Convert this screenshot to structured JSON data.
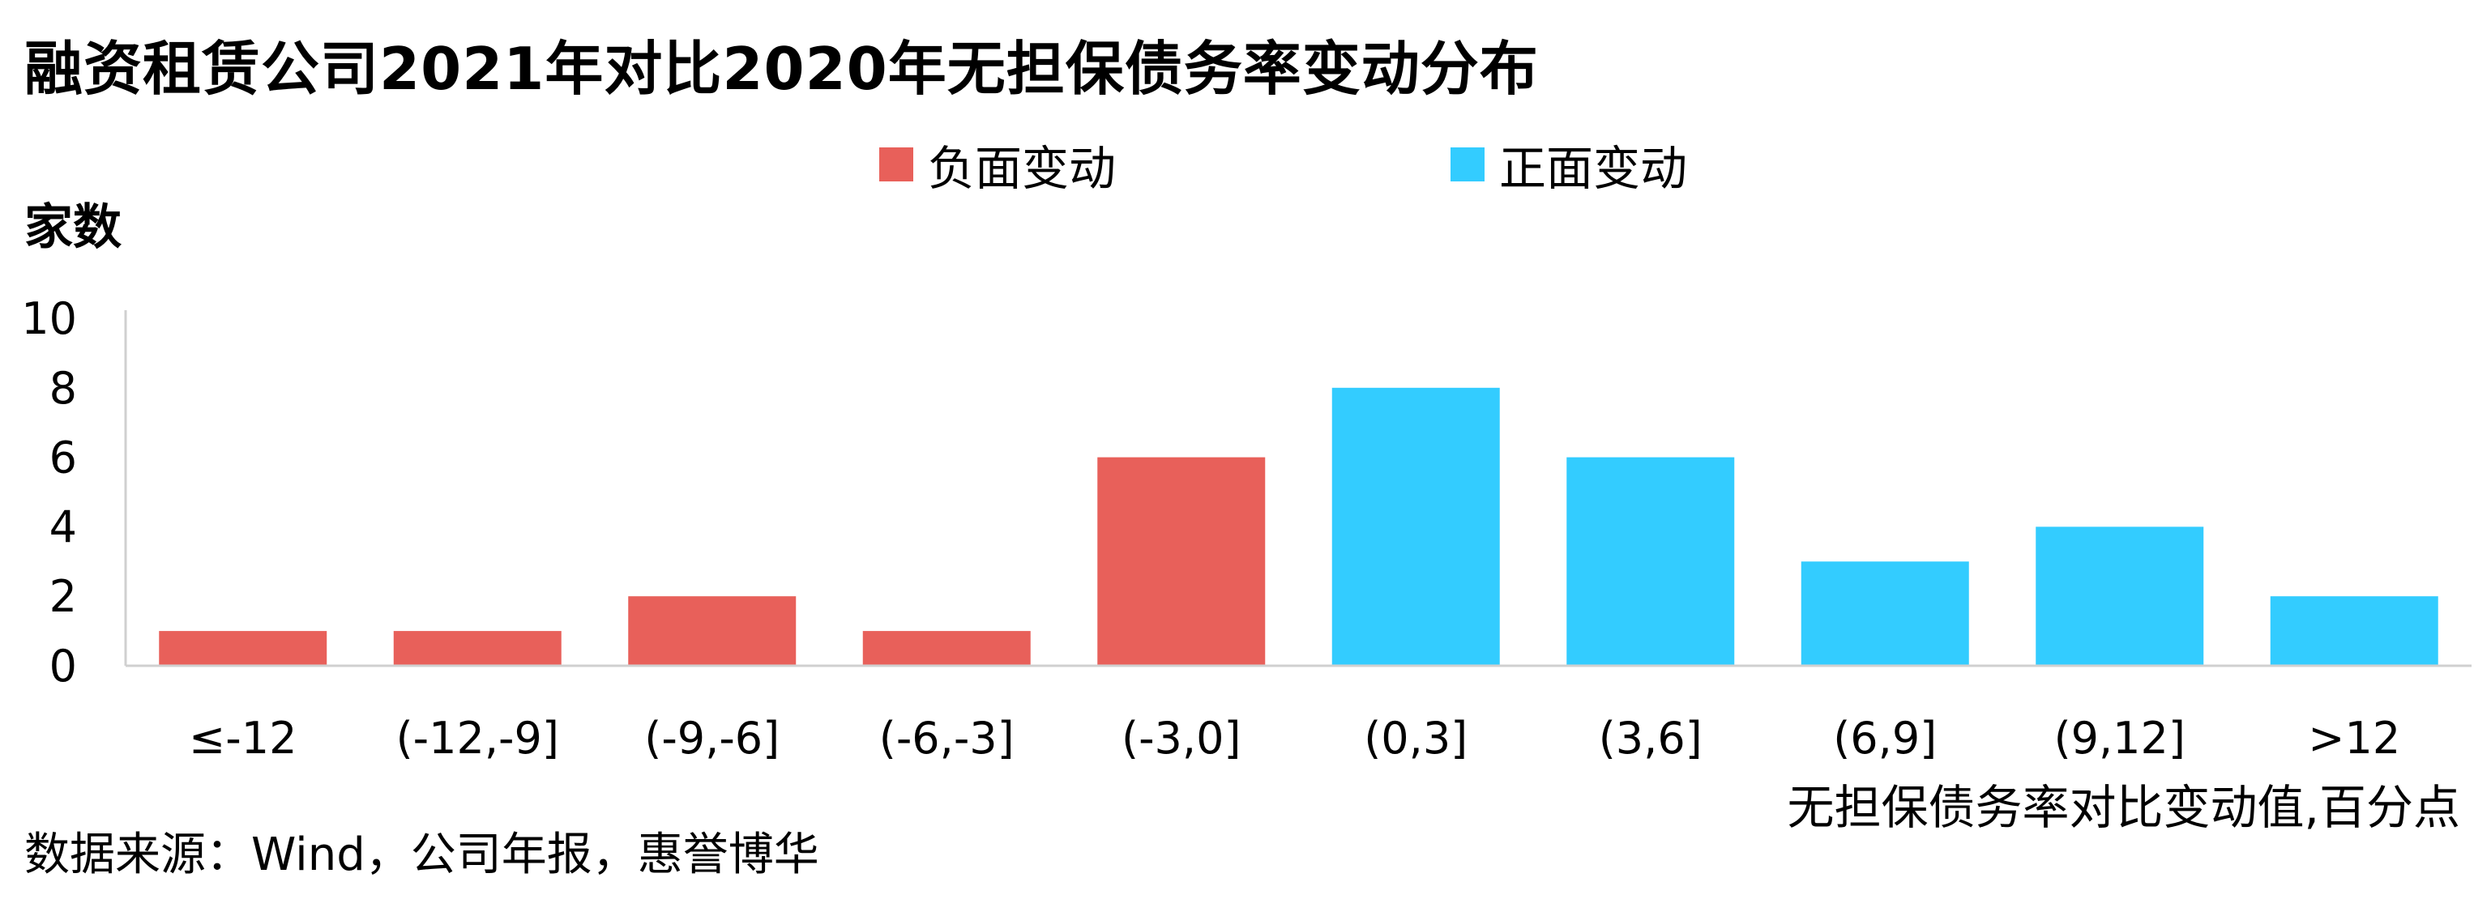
{
  "title": "融资租赁公司2021年对比2020年无担保债务率变动分布",
  "source": "数据来源：Wind，公司年报，惠誉博华",
  "chart_data": {
    "type": "bar",
    "ylabel": "家数",
    "xlabel": "无担保债务率对比变动值,百分点",
    "ylim": [
      0,
      10
    ],
    "yticks": [
      "0",
      "2",
      "4",
      "6",
      "8",
      "10"
    ],
    "categories": [
      "≤-12",
      "(-12,-9]",
      "(-9,-6]",
      "(-6,-3]",
      "(-3,0]",
      "(0,3]",
      "(3,6]",
      "(6,9]",
      "(9,12]",
      ">12"
    ],
    "series": [
      {
        "name": "负面变动",
        "color": "#E8605A",
        "values": [
          1,
          1,
          2,
          1,
          6,
          null,
          null,
          null,
          null,
          null
        ]
      },
      {
        "name": "正面变动",
        "color": "#33CCFF",
        "values": [
          null,
          null,
          null,
          null,
          null,
          8,
          6,
          3,
          4,
          2
        ]
      }
    ],
    "legend": "top-center",
    "grid": false
  }
}
